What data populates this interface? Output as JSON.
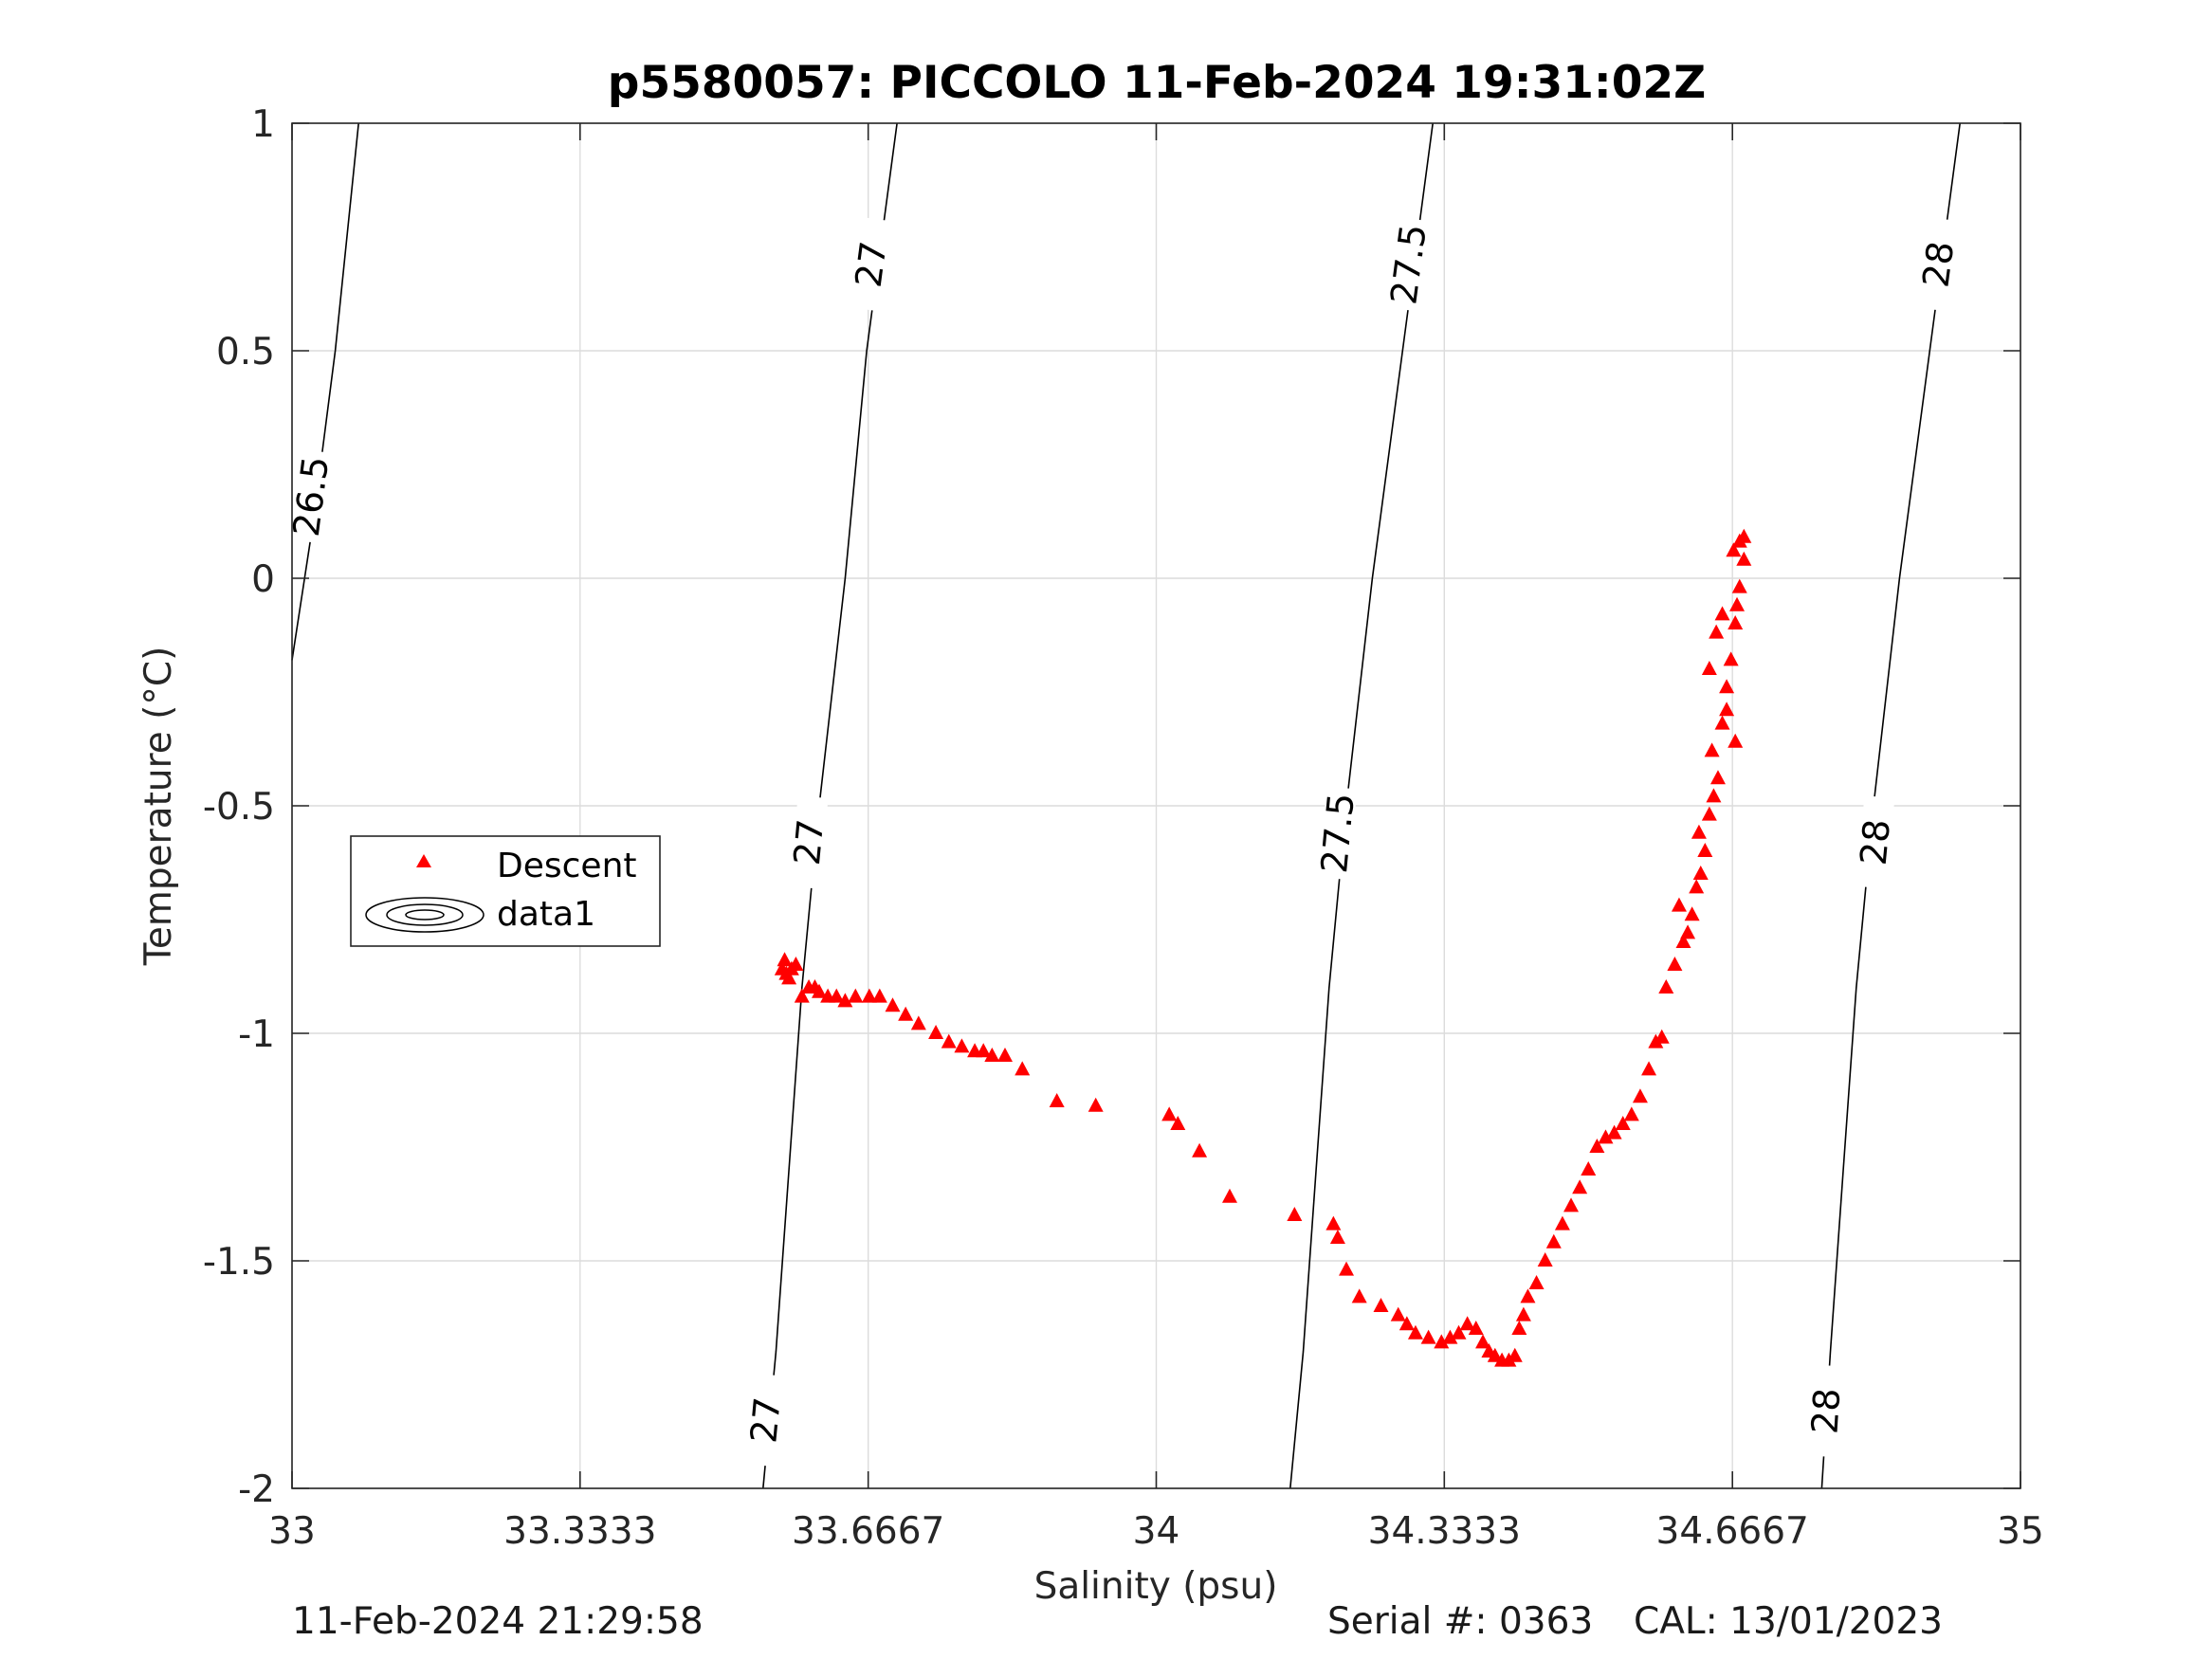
{
  "chart_data": {
    "type": "scatter",
    "title": "p5580057: PICCOLO 11-Feb-2024 19:31:02Z",
    "xlabel": "Salinity (psu)",
    "ylabel": "Temperature (°C)",
    "xlim": [
      33,
      35
    ],
    "ylim": [
      -2,
      1
    ],
    "x_ticks": [
      33,
      33.3333,
      33.6667,
      34,
      34.3333,
      34.6667,
      35
    ],
    "x_tick_labels": [
      "33",
      "33.3333",
      "33.6667",
      "34",
      "34.3333",
      "34.6667",
      "35"
    ],
    "y_ticks": [
      -2,
      -1.5,
      -1,
      -0.5,
      0,
      0.5,
      1
    ],
    "y_tick_labels": [
      "-2",
      "-1.5",
      "-1",
      "-0.5",
      "0",
      "0.5",
      "1"
    ],
    "grid": true,
    "legend": {
      "placement": "left-middle",
      "entries": [
        {
          "label": "Descent",
          "marker": "triangle",
          "color": "#ff0000"
        },
        {
          "label": "data1",
          "marker": "contour",
          "color": "#000000"
        }
      ]
    },
    "isopycnals": [
      {
        "level": "26.5",
        "points": [
          [
            33.0,
            -0.18
          ],
          [
            33.025,
            0.13
          ],
          [
            33.05,
            0.5
          ],
          [
            33.077,
            1.0
          ]
        ],
        "labels": [
          {
            "s": 33.022,
            "t": 0.18
          }
        ]
      },
      {
        "level": "27",
        "points": [
          [
            33.545,
            -2.0
          ],
          [
            33.56,
            -1.7
          ],
          [
            33.575,
            -1.3
          ],
          [
            33.59,
            -0.9
          ],
          [
            33.61,
            -0.5
          ],
          [
            33.64,
            0.0
          ],
          [
            33.665,
            0.5
          ],
          [
            33.7,
            1.0
          ]
        ],
        "labels": [
          {
            "s": 33.548,
            "t": -1.85
          },
          {
            "s": 33.598,
            "t": -0.58
          },
          {
            "s": 33.67,
            "t": 0.69
          }
        ]
      },
      {
        "level": "27.5",
        "points": [
          [
            34.155,
            -2.0
          ],
          [
            34.17,
            -1.7
          ],
          [
            34.185,
            -1.3
          ],
          [
            34.2,
            -0.9
          ],
          [
            34.22,
            -0.5
          ],
          [
            34.25,
            0.0
          ],
          [
            34.285,
            0.5
          ],
          [
            34.32,
            1.0
          ]
        ],
        "labels": [
          {
            "s": 34.21,
            "t": -0.56
          },
          {
            "s": 34.292,
            "t": 0.69
          }
        ]
      },
      {
        "level": "28",
        "points": [
          [
            34.77,
            -2.0
          ],
          [
            34.78,
            -1.7
          ],
          [
            34.795,
            -1.3
          ],
          [
            34.81,
            -0.9
          ],
          [
            34.83,
            -0.5
          ],
          [
            34.86,
            0.0
          ],
          [
            34.895,
            0.5
          ],
          [
            34.93,
            1.0
          ]
        ],
        "labels": [
          {
            "s": 34.775,
            "t": -1.83
          },
          {
            "s": 34.832,
            "t": -0.58
          },
          {
            "s": 34.905,
            "t": 0.69
          }
        ]
      }
    ],
    "series": [
      {
        "name": "Descent",
        "color": "#ff0000",
        "marker": "triangle",
        "x": [
          33.567,
          33.57,
          33.572,
          33.575,
          33.578,
          33.583,
          33.59,
          33.598,
          33.605,
          33.61,
          33.62,
          33.63,
          33.64,
          33.652,
          33.668,
          33.68,
          33.695,
          33.71,
          33.725,
          33.745,
          33.76,
          33.775,
          33.79,
          33.8,
          33.81,
          33.825,
          33.845,
          33.885,
          33.93,
          34.015,
          34.025,
          34.05,
          34.085,
          34.16,
          34.205,
          34.21,
          34.22,
          34.235,
          34.26,
          34.28,
          34.29,
          34.3,
          34.315,
          34.33,
          34.34,
          34.35,
          34.36,
          34.37,
          34.378,
          34.385,
          34.392,
          34.4,
          34.408,
          34.415,
          34.42,
          34.425,
          34.43,
          34.44,
          34.45,
          34.46,
          34.47,
          34.48,
          34.49,
          34.5,
          34.51,
          34.52,
          34.53,
          34.54,
          34.55,
          34.56,
          34.57,
          34.578,
          34.585,
          34.59,
          34.6,
          34.61,
          34.605,
          34.615,
          34.62,
          34.625,
          34.63,
          34.635,
          34.628,
          34.64,
          34.645,
          34.65,
          34.643,
          34.655,
          34.66,
          34.665,
          34.67,
          34.672,
          34.675,
          34.68,
          34.68,
          34.675,
          34.668,
          34.655,
          34.648,
          34.64,
          34.66,
          34.67
        ],
        "y": [
          -0.86,
          -0.84,
          -0.87,
          -0.88,
          -0.86,
          -0.85,
          -0.92,
          -0.9,
          -0.9,
          -0.91,
          -0.92,
          -0.92,
          -0.93,
          -0.92,
          -0.92,
          -0.92,
          -0.94,
          -0.96,
          -0.98,
          -1.0,
          -1.02,
          -1.03,
          -1.04,
          -1.04,
          -1.05,
          -1.05,
          -1.08,
          -1.15,
          -1.16,
          -1.18,
          -1.2,
          -1.26,
          -1.36,
          -1.4,
          -1.42,
          -1.45,
          -1.52,
          -1.58,
          -1.6,
          -1.62,
          -1.64,
          -1.66,
          -1.67,
          -1.68,
          -1.67,
          -1.66,
          -1.64,
          -1.65,
          -1.68,
          -1.7,
          -1.71,
          -1.72,
          -1.72,
          -1.71,
          -1.65,
          -1.62,
          -1.58,
          -1.55,
          -1.5,
          -1.46,
          -1.42,
          -1.38,
          -1.34,
          -1.3,
          -1.25,
          -1.23,
          -1.22,
          -1.2,
          -1.18,
          -1.14,
          -1.08,
          -1.02,
          -1.01,
          -0.9,
          -0.85,
          -0.8,
          -0.72,
          -0.78,
          -0.74,
          -0.68,
          -0.65,
          -0.6,
          -0.56,
          -0.52,
          -0.48,
          -0.44,
          -0.38,
          -0.32,
          -0.24,
          -0.18,
          -0.1,
          -0.06,
          -0.02,
          0.04,
          0.09,
          0.08,
          0.06,
          -0.08,
          -0.12,
          -0.2,
          -0.29,
          -0.36
        ]
      }
    ]
  },
  "footer": {
    "timestamp": "11-Feb-2024 21:29:58",
    "serial": "Serial #: 0363",
    "cal": "CAL: 13/01/2023"
  }
}
